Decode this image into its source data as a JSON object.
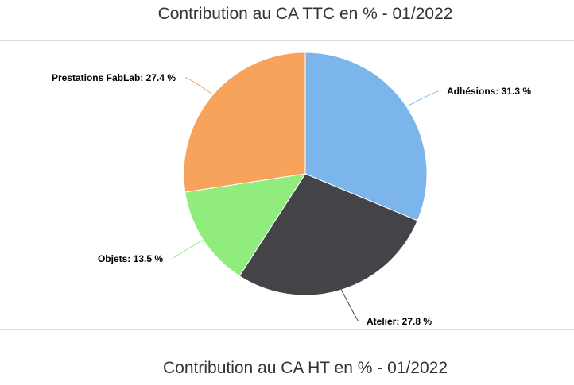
{
  "charts": {
    "first_title": "Contribution au CA TTC en % - 01/2022",
    "second_title": "Contribution au CA HT en % - 01/2022"
  },
  "chart_data": {
    "type": "pie",
    "title": "Contribution au CA TTC en % - 01/2022",
    "slices": [
      {
        "name": "Adhésions",
        "value": 31.3,
        "label": "Adhésions: 31.3 %",
        "color": "#7cb5ec"
      },
      {
        "name": "Atelier",
        "value": 27.8,
        "label": "Atelier: 27.8 %",
        "color": "#434348"
      },
      {
        "name": "Objets",
        "value": 13.5,
        "label": "Objets: 13.5 %",
        "color": "#90ed7d"
      },
      {
        "name": "Prestations FabLab",
        "value": 27.4,
        "label": "Prestations FabLab: 27.4 %",
        "color": "#f7a35c"
      }
    ]
  }
}
